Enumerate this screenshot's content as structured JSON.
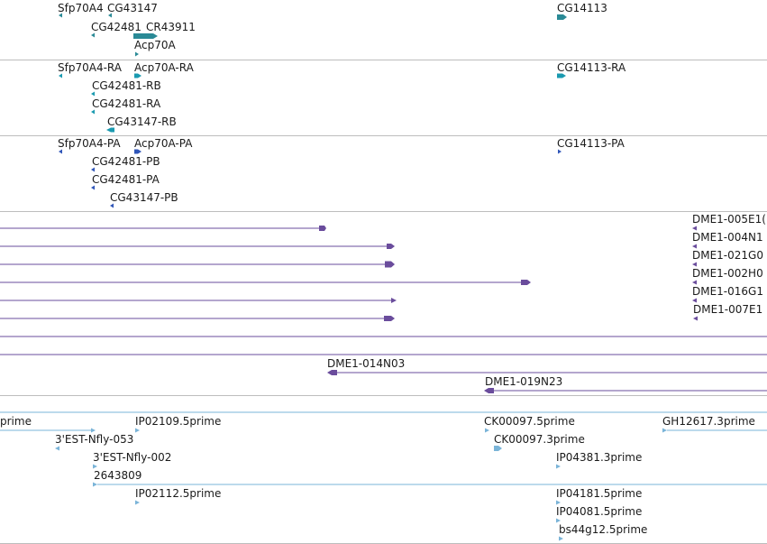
{
  "colors": {
    "gene": "#2a8a96",
    "rna": "#1a9ab0",
    "protein": "#2f55b8",
    "bac": "#6a4c9c",
    "est": "#7ab4d8",
    "divider": "#bdbdbd",
    "label": "#1a1a1a"
  },
  "tracks": {
    "genes": {
      "features": [
        {
          "label": "Sfp70A4",
          "strand": "-"
        },
        {
          "label": "CG43147",
          "strand": "-"
        },
        {
          "label": "CG42481",
          "strand": "-"
        },
        {
          "label": "CR43911",
          "strand": "+"
        },
        {
          "label": "Acp70A",
          "strand": "+"
        },
        {
          "label": "CG14113",
          "strand": "+"
        }
      ]
    },
    "transcripts": {
      "features": [
        {
          "label": "Sfp70A4-RA",
          "strand": "-"
        },
        {
          "label": "Acp70A-RA",
          "strand": "+"
        },
        {
          "label": "CG14113-RA",
          "strand": "+"
        },
        {
          "label": "CG42481-RB",
          "strand": "-"
        },
        {
          "label": "CG42481-RA",
          "strand": "-"
        },
        {
          "label": "CG43147-RB",
          "strand": "-"
        }
      ]
    },
    "proteins": {
      "features": [
        {
          "label": "Sfp70A4-PA",
          "strand": "-"
        },
        {
          "label": "Acp70A-PA",
          "strand": "+"
        },
        {
          "label": "CG14113-PA",
          "strand": "+"
        },
        {
          "label": "CG42481-PB",
          "strand": "-"
        },
        {
          "label": "CG42481-PA",
          "strand": "-"
        },
        {
          "label": "CG43147-PB",
          "strand": "-"
        }
      ]
    },
    "bac_ends": {
      "features": [
        {
          "label": "DME1-005E1(",
          "strand": "-"
        },
        {
          "label": "DME1-004N1",
          "strand": "-"
        },
        {
          "label": "DME1-021G0",
          "strand": "-"
        },
        {
          "label": "DME1-002H0",
          "strand": "-"
        },
        {
          "label": "DME1-016G1",
          "strand": "-"
        },
        {
          "label": "DME1-007E1",
          "strand": "-"
        },
        {
          "label": "DME1-014N03",
          "strand": "-"
        },
        {
          "label": "DME1-019N23",
          "strand": "-"
        }
      ]
    },
    "ests": {
      "features": [
        {
          "label": "prime",
          "strand": "+"
        },
        {
          "label": "IP02109.5prime",
          "strand": "+"
        },
        {
          "label": "CK00097.5prime",
          "strand": "+"
        },
        {
          "label": "GH12617.3prime",
          "strand": "+"
        },
        {
          "label": "3'EST-Nfly-053",
          "strand": "-"
        },
        {
          "label": "CK00097.3prime",
          "strand": "+"
        },
        {
          "label": "3'EST-Nfly-002",
          "strand": "+"
        },
        {
          "label": "IP04381.3prime",
          "strand": "+"
        },
        {
          "label": "2643809",
          "strand": "+"
        },
        {
          "label": "IP02112.5prime",
          "strand": "+"
        },
        {
          "label": "IP04181.5prime",
          "strand": "+"
        },
        {
          "label": "IP04081.5prime",
          "strand": "+"
        },
        {
          "label": "bs44g12.5prime",
          "strand": "+"
        }
      ]
    }
  }
}
